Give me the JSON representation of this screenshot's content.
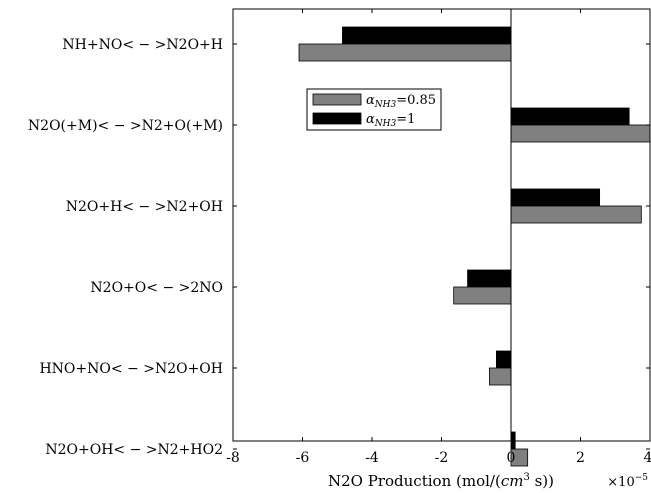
{
  "chart_data": {
    "type": "bar",
    "orientation": "horizontal",
    "categories": [
      "NH+NO< − >N2O+H",
      "N2O(+M)< − >N2+O(+M)",
      "N2O+H< − >N2+OH",
      "N2O+O< − >2NO",
      "HNO+NO< − >N2O+OH",
      "N2O+OH< − >N2+HO2"
    ],
    "series": [
      {
        "name_main": "α",
        "name_sub": "NH3",
        "name_suffix": "=0.85",
        "color": "#808080",
        "values": [
          -6.1,
          4.0,
          3.75,
          -1.65,
          -0.62,
          0.48
        ]
      },
      {
        "name_main": "α",
        "name_sub": "NH3",
        "name_suffix": "=1",
        "color": "#000000",
        "values": [
          -4.85,
          3.4,
          2.55,
          -1.25,
          -0.42,
          0.12
        ]
      }
    ],
    "xlabel_main": "N2O Production (mol/(",
    "xlabel_var": "cm",
    "xlabel_sup": "3",
    "xlabel_tail": " s))",
    "xlim": [
      -8,
      4
    ],
    "xticks": [
      "-8",
      "-6",
      "-4",
      "-2",
      "0",
      "2",
      "4"
    ],
    "exponent_base": "×10",
    "exponent_power": "−5",
    "legend_position": "top-center",
    "grid": false
  }
}
